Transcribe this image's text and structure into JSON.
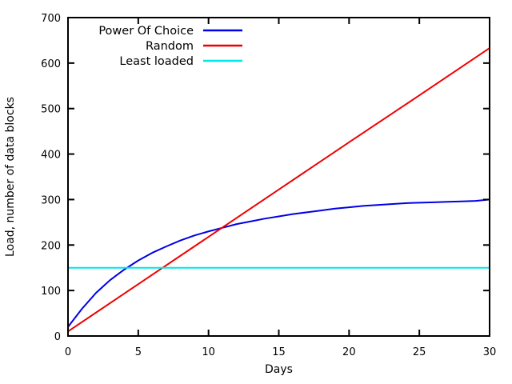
{
  "chart_data": {
    "type": "line",
    "title": "",
    "xlabel": "Days",
    "ylabel": "Load, number of data blocks",
    "xlim": [
      0,
      30
    ],
    "ylim": [
      0,
      700
    ],
    "xticks": [
      0,
      5,
      10,
      15,
      20,
      25,
      30
    ],
    "yticks": [
      0,
      100,
      200,
      300,
      400,
      500,
      600,
      700
    ],
    "grid": false,
    "legend_position": "top-left-inside",
    "background_color": "#ffffff",
    "axis_color": "#000000",
    "series": [
      {
        "name": "Power Of Choice",
        "color": "#0000e6",
        "x": [
          0,
          1,
          2,
          3,
          4,
          5,
          6,
          7,
          8,
          9,
          10,
          11,
          12,
          13,
          14,
          15,
          16,
          17,
          18,
          19,
          20,
          21,
          22,
          23,
          24,
          25,
          26,
          27,
          28,
          29,
          30
        ],
        "y": [
          20,
          60,
          95,
          123,
          146,
          166,
          183,
          197,
          210,
          221,
          230,
          238,
          246,
          252,
          258,
          263,
          268,
          272,
          276,
          280,
          283,
          286,
          288,
          290,
          292,
          293,
          294,
          295,
          296,
          297,
          300
        ]
      },
      {
        "name": "Random",
        "color": "#ee0000",
        "x": [
          0,
          5,
          10,
          15,
          20,
          25,
          30
        ],
        "y": [
          10,
          114,
          218,
          322,
          426,
          529,
          633
        ]
      },
      {
        "name": "Least loaded",
        "color": "#00e6e6",
        "x": [
          0,
          30
        ],
        "y": [
          150,
          150
        ]
      }
    ]
  }
}
